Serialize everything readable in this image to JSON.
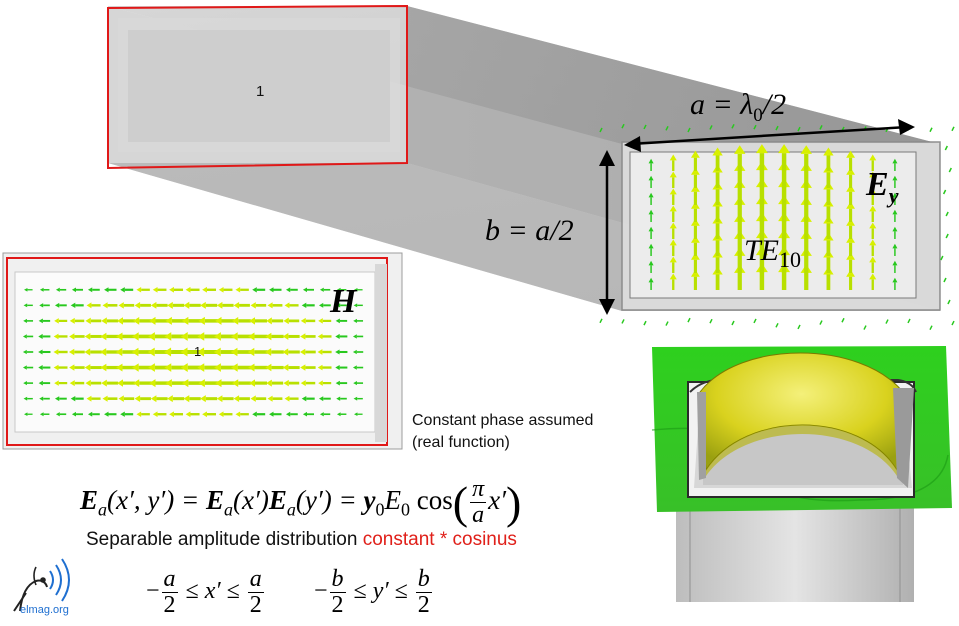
{
  "labels": {
    "port_number_top": "1",
    "port_number_inset": "1",
    "dim_a": "a = λ",
    "dim_a_sub": "0",
    "dim_a_tail": "/2",
    "dim_b": "b = a/2",
    "field_e": "E",
    "field_e_sub": "y",
    "mode": "TE",
    "mode_sub": "10",
    "field_h": "H"
  },
  "notes": {
    "phase_line1": "Constant phase assumed",
    "phase_line2": "(real function)",
    "separable_prefix": "Separable amplitude distribution ",
    "separable_highlight": "constant * cosinus"
  },
  "equations": {
    "main": {
      "lhs": "E",
      "lhs_sub": "a",
      "lhs_args": "(x′, y′) = ",
      "t1": "E",
      "t1_sub": "a",
      "t1_args": "(x′)",
      "t2": "E",
      "t2_sub": "a",
      "t2_args": "(y′) = ",
      "y": "y",
      "y_sub": "0",
      "e0": "E",
      "e0_sub": "0",
      "cos": " cos",
      "frac_num": "π",
      "frac_den": "a",
      "arg_tail": "x′"
    },
    "range_x": {
      "minus": "−",
      "num": "a",
      "den": "2",
      "middle": " ≤ x′ ≤ ",
      "num2": "a",
      "den2": "2"
    },
    "range_y": {
      "minus": "−",
      "num": "b",
      "den": "2",
      "middle": " ≤ y′ ≤ ",
      "num2": "b",
      "den2": "2"
    }
  },
  "logo": {
    "text": "elmag.org"
  },
  "field": {
    "e_amplitude_profile": "cos",
    "h_amplitude_profile": "cos"
  },
  "colors": {
    "arrow": "#b8e000",
    "arrow_tip": "#d8f000",
    "green_field": "#28c81e",
    "outline_red": "#e01818",
    "highlight_red": "#e0201a",
    "logo_blue": "#1f6fd0"
  }
}
